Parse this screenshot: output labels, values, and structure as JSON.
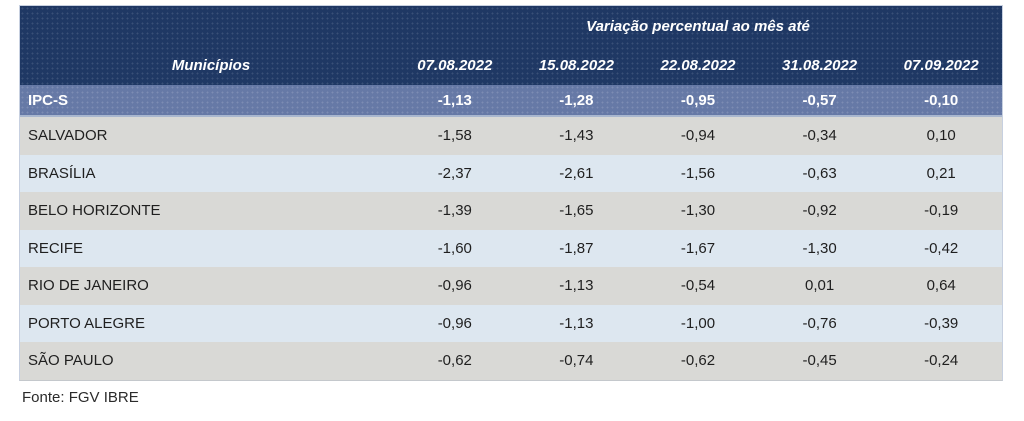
{
  "chart_data": {
    "type": "table",
    "title": "Variação percentual ao mês até",
    "row_header_label": "Municípios",
    "columns": [
      "07.08.2022",
      "15.08.2022",
      "22.08.2022",
      "31.08.2022",
      "07.09.2022"
    ],
    "rows": [
      {
        "label": "IPC-S",
        "highlight": true,
        "display": [
          "-1,13",
          "-1,28",
          "-0,95",
          "-0,57",
          "-0,10"
        ],
        "values": [
          -1.13,
          -1.28,
          -0.95,
          -0.57,
          -0.1
        ]
      },
      {
        "label": "SALVADOR",
        "highlight": false,
        "display": [
          "-1,58",
          "-1,43",
          "-0,94",
          "-0,34",
          "0,10"
        ],
        "values": [
          -1.58,
          -1.43,
          -0.94,
          -0.34,
          0.1
        ]
      },
      {
        "label": "BRASÍLIA",
        "highlight": false,
        "display": [
          "-2,37",
          "-2,61",
          "-1,56",
          "-0,63",
          "0,21"
        ],
        "values": [
          -2.37,
          -2.61,
          -1.56,
          -0.63,
          0.21
        ]
      },
      {
        "label": "BELO HORIZONTE",
        "highlight": false,
        "display": [
          "-1,39",
          "-1,65",
          "-1,30",
          "-0,92",
          "-0,19"
        ],
        "values": [
          -1.39,
          -1.65,
          -1.3,
          -0.92,
          -0.19
        ]
      },
      {
        "label": "RECIFE",
        "highlight": false,
        "display": [
          "-1,60",
          "-1,87",
          "-1,67",
          "-1,30",
          "-0,42"
        ],
        "values": [
          -1.6,
          -1.87,
          -1.67,
          -1.3,
          -0.42
        ]
      },
      {
        "label": "RIO DE JANEIRO",
        "highlight": false,
        "display": [
          "-0,96",
          "-1,13",
          "-0,54",
          "0,01",
          "0,64"
        ],
        "values": [
          -0.96,
          -1.13,
          -0.54,
          0.01,
          0.64
        ]
      },
      {
        "label": "PORTO ALEGRE",
        "highlight": false,
        "display": [
          "-0,96",
          "-1,13",
          "-1,00",
          "-0,76",
          "-0,39"
        ],
        "values": [
          -0.96,
          -1.13,
          -1.0,
          -0.76,
          -0.39
        ]
      },
      {
        "label": "SÃO PAULO",
        "highlight": false,
        "display": [
          "-0,62",
          "-0,74",
          "-0,62",
          "-0,45",
          "-0,24"
        ],
        "values": [
          -0.62,
          -0.74,
          -0.62,
          -0.45,
          -0.24
        ]
      }
    ],
    "source": "Fonte: FGV IBRE",
    "layout": {
      "colors": {
        "header_bg": "#1F3864",
        "summary_row_bg": "#6679A6",
        "row_stripe_gray": "#D9D9D6",
        "row_stripe_blue": "#DDE7F0",
        "header_text": "#FFFFFF",
        "body_text": "#1F1F1F"
      }
    }
  }
}
